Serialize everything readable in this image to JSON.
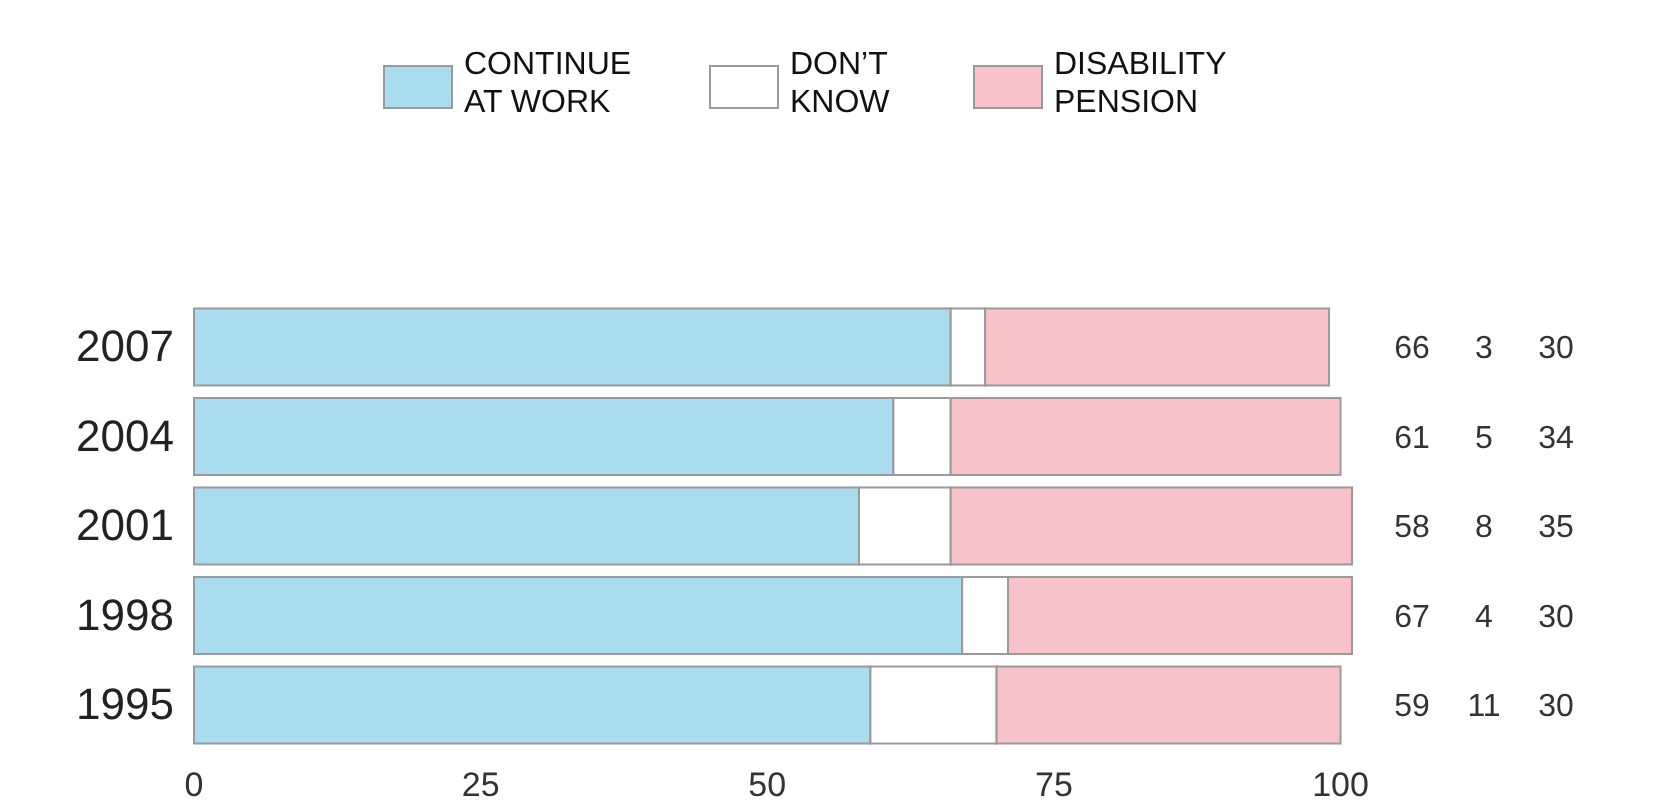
{
  "chart_data": {
    "type": "bar",
    "orientation": "horizontal",
    "stacked": true,
    "categories": [
      "2007",
      "2004",
      "2001",
      "1998",
      "1995"
    ],
    "series": [
      {
        "name": "CONTINUE AT WORK",
        "color": "#a9dcee",
        "values": [
          66,
          61,
          58,
          67,
          59
        ]
      },
      {
        "name": "DON’T KNOW",
        "color": "#ffffff",
        "values": [
          3,
          5,
          8,
          4,
          11
        ]
      },
      {
        "name": "DISABILITY PENSION",
        "color": "#f7c3c9",
        "values": [
          30,
          34,
          35,
          30,
          30
        ]
      }
    ],
    "xlim": [
      0,
      101
    ],
    "xticks": [
      0,
      25,
      50,
      75,
      100
    ],
    "data_labels": true,
    "legend": "top"
  }
}
